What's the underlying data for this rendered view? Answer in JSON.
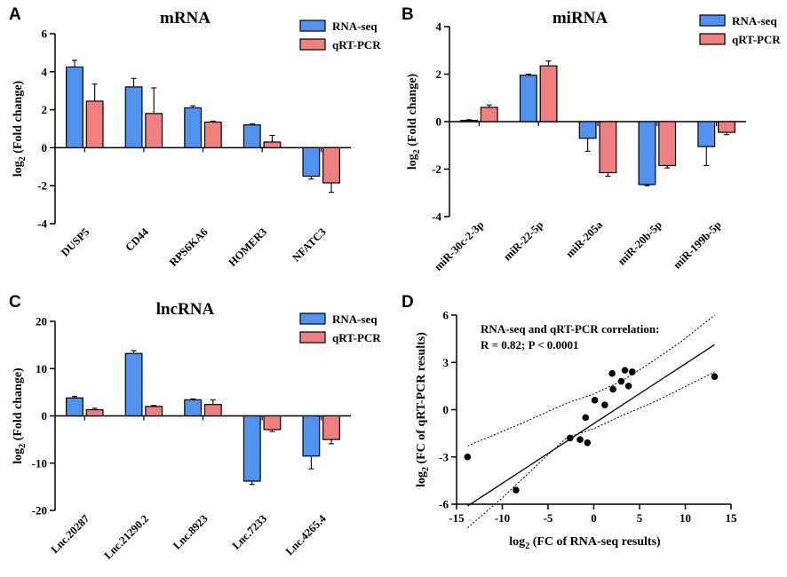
{
  "colors": {
    "rna": "#4f92f0",
    "qpcr": "#f08080",
    "axis": "#000000"
  },
  "chart_data": [
    {
      "panel": "A",
      "type": "bar",
      "title": "mRNA",
      "ylabel_main": "log",
      "ylabel_sub": "2",
      "ylabel_tail": " (Fold change)",
      "ylim": [
        -4,
        6
      ],
      "yticks": [
        -4,
        -2,
        0,
        2,
        4,
        6
      ],
      "categories": [
        "DUSP5",
        "CD44",
        "RPS6KA6",
        "HOMER3",
        "NFATC3"
      ],
      "series": [
        {
          "name": "RNA-seq",
          "values": [
            4.25,
            3.2,
            2.1,
            1.2,
            -1.5
          ],
          "errors": [
            0.35,
            0.45,
            0.1,
            0.05,
            0.15
          ]
        },
        {
          "name": "qRT-PCR",
          "values": [
            2.45,
            1.8,
            1.35,
            0.3,
            -1.85
          ],
          "errors": [
            0.9,
            1.35,
            0.05,
            0.35,
            0.5
          ]
        }
      ]
    },
    {
      "panel": "B",
      "type": "bar",
      "title": "miRNA",
      "ylabel_main": "log",
      "ylabel_sub": "2",
      "ylabel_tail": " (Fold change)",
      "ylim": [
        -4,
        4
      ],
      "yticks": [
        -4,
        -2,
        0,
        2,
        4
      ],
      "categories": [
        "miR-30c-2-3p",
        "miR-22-5p",
        "miR-205a",
        "miR-20b-5p",
        "miR-199b-5p"
      ],
      "series": [
        {
          "name": "RNA-seq",
          "values": [
            0.05,
            1.95,
            -0.7,
            -2.65,
            -1.05
          ],
          "errors": [
            0.03,
            0.05,
            0.55,
            0.05,
            0.8
          ]
        },
        {
          "name": "qRT-PCR",
          "values": [
            0.6,
            2.35,
            -2.15,
            -1.85,
            -0.45
          ],
          "errors": [
            0.1,
            0.2,
            0.15,
            0.1,
            0.1
          ]
        }
      ]
    },
    {
      "panel": "C",
      "type": "bar",
      "title": "lncRNA",
      "ylabel_main": "log",
      "ylabel_sub": "2",
      "ylabel_tail": " (Fold change)",
      "ylim": [
        -20,
        20
      ],
      "yticks": [
        -20,
        -10,
        0,
        10,
        20
      ],
      "categories": [
        "Lnc.20287",
        "Lnc.21290.2",
        "Lnc.8923",
        "Lnc.7233",
        "Lnc.4265.4"
      ],
      "series": [
        {
          "name": "RNA-seq",
          "values": [
            3.8,
            13.2,
            3.4,
            -13.8,
            -8.5
          ],
          "errors": [
            0.3,
            0.6,
            0.2,
            0.7,
            2.7
          ]
        },
        {
          "name": "qRT-PCR",
          "values": [
            1.3,
            2.0,
            2.4,
            -2.9,
            -5.0
          ],
          "errors": [
            0.3,
            0.2,
            1.0,
            0.4,
            0.9
          ]
        }
      ]
    },
    {
      "panel": "D",
      "type": "scatter",
      "annotation_line1": "RNA-seq and qRT-PCR correlation:",
      "annotation_line2": "R = 0.82; P < 0.0001",
      "xlabel_main": "log",
      "xlabel_sub": "2",
      "xlabel_tail": " (FC of RNA-seq results)",
      "ylabel_main": "log",
      "ylabel_sub": "2",
      "ylabel_tail": " (FC of qRT-PCR results)",
      "xlim": [
        -15,
        15
      ],
      "ylim": [
        -6,
        6
      ],
      "xticks": [
        -15,
        -10,
        -5,
        0,
        5,
        10,
        15
      ],
      "yticks": [
        -6,
        -3,
        0,
        3,
        6
      ],
      "points": [
        [
          -13.8,
          -3.0
        ],
        [
          -8.5,
          -5.1
        ],
        [
          -2.6,
          -1.8
        ],
        [
          -1.5,
          -1.9
        ],
        [
          -0.9,
          -0.5
        ],
        [
          -0.7,
          -2.1
        ],
        [
          0.1,
          0.6
        ],
        [
          1.2,
          0.3
        ],
        [
          2.0,
          2.3
        ],
        [
          2.1,
          1.3
        ],
        [
          3.0,
          1.8
        ],
        [
          3.4,
          2.5
        ],
        [
          3.8,
          1.5
        ],
        [
          4.2,
          2.4
        ],
        [
          13.2,
          2.1
        ]
      ],
      "fit": {
        "slope": 0.32,
        "intercept": -0.1
      },
      "band_upper": [
        [
          -13.8,
          -2.3
        ],
        [
          -8,
          -0.9
        ],
        [
          -3,
          0.4
        ],
        [
          0,
          1.0
        ],
        [
          3,
          1.8
        ],
        [
          6,
          2.9
        ],
        [
          9.5,
          4.3
        ],
        [
          13.2,
          6.0
        ]
      ],
      "band_lower": [
        [
          -13.8,
          -7.5
        ],
        [
          -10,
          -5.6
        ],
        [
          -6,
          -3.4
        ],
        [
          -3,
          -1.8
        ],
        [
          0,
          -1.2
        ],
        [
          3,
          -0.4
        ],
        [
          7,
          0.6
        ],
        [
          13.2,
          2.4
        ]
      ]
    }
  ]
}
